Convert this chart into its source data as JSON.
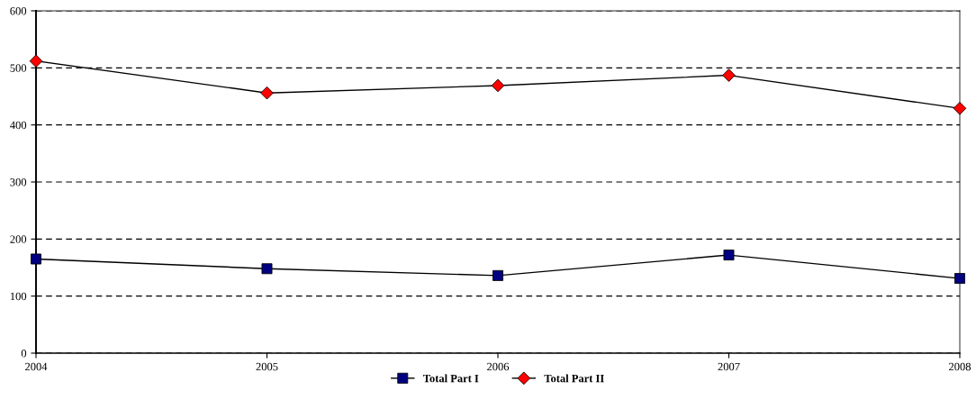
{
  "chart_data": {
    "type": "line",
    "x": [
      2004,
      2005,
      2006,
      2007,
      2008
    ],
    "series": [
      {
        "name": "Total Part I",
        "color": "#000080",
        "marker": "square",
        "values": [
          165,
          148,
          136,
          172,
          131
        ]
      },
      {
        "name": "Total Part II",
        "color": "#ff0000",
        "marker": "diamond",
        "values": [
          512,
          456,
          469,
          487,
          429
        ]
      }
    ],
    "xlim": [
      2004,
      2008
    ],
    "xticks": [
      2004,
      2005,
      2006,
      2007,
      2008
    ],
    "ylim": [
      0,
      600
    ],
    "yticks": [
      0,
      100,
      200,
      300,
      400,
      500,
      600
    ],
    "grid": "y",
    "legend": "bottom",
    "line_style": "solid"
  }
}
